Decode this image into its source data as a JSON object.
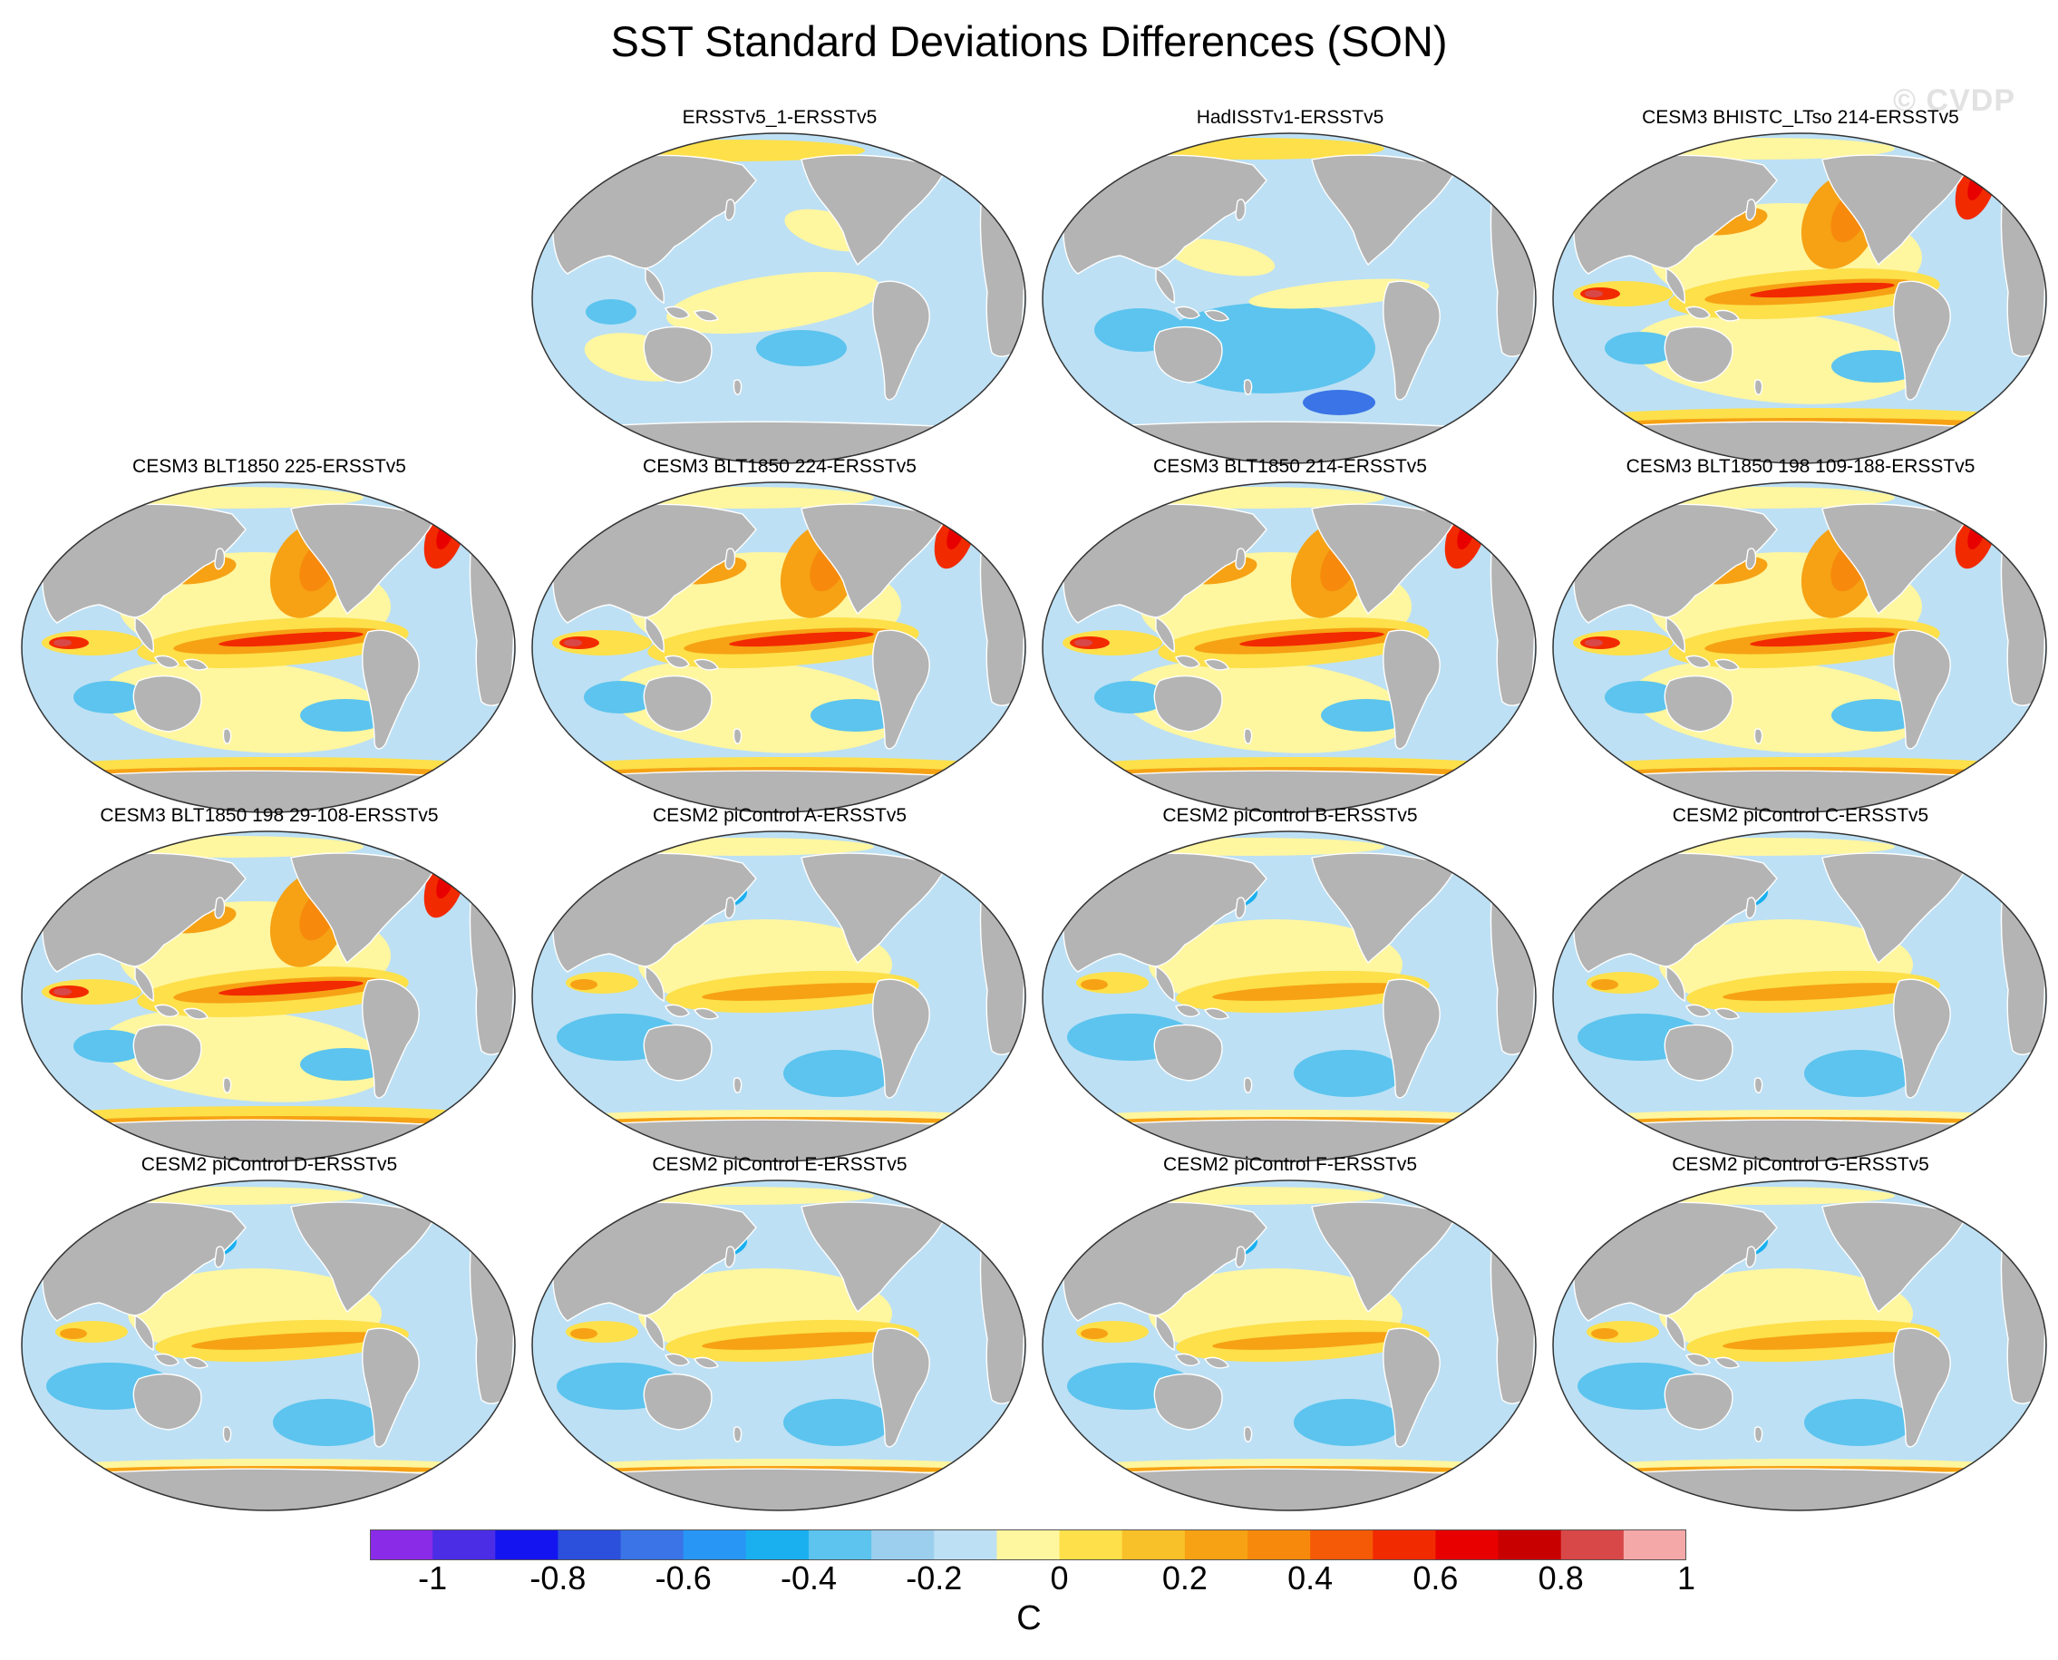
{
  "title": "SST Standard Deviations Differences (SON)",
  "watermark": "© CVDP",
  "panels": [
    {
      "label": "ERSSTv5_1-ERSSTv5",
      "pattern": "weak-mixed"
    },
    {
      "label": "HadISSTv1-ERSSTv5",
      "pattern": "weak-negative"
    },
    {
      "label": "CESM3 BHISTC_LTso 214-ERSSTv5",
      "pattern": "strong-positive"
    },
    {
      "label": "CESM3 BLT1850 225-ERSSTv5",
      "pattern": "strong-positive"
    },
    {
      "label": "CESM3 BLT1850 224-ERSSTv5",
      "pattern": "strong-positive"
    },
    {
      "label": "CESM3 BLT1850 214-ERSSTv5",
      "pattern": "strong-positive"
    },
    {
      "label": "CESM3 BLT1850 198 109-188-ERSSTv5",
      "pattern": "strong-positive"
    },
    {
      "label": "CESM3 BLT1850 198 29-108-ERSSTv5",
      "pattern": "strong-positive"
    },
    {
      "label": "CESM2 piControl A-ERSSTv5",
      "pattern": "moderate-positive"
    },
    {
      "label": "CESM2 piControl B-ERSSTv5",
      "pattern": "moderate-positive"
    },
    {
      "label": "CESM2 piControl C-ERSSTv5",
      "pattern": "moderate-positive"
    },
    {
      "label": "CESM2 piControl D-ERSSTv5",
      "pattern": "moderate-positive"
    },
    {
      "label": "CESM2 piControl E-ERSSTv5",
      "pattern": "moderate-positive"
    },
    {
      "label": "CESM2 piControl F-ERSSTv5",
      "pattern": "moderate-positive"
    },
    {
      "label": "CESM2 piControl G-ERSSTv5",
      "pattern": "moderate-positive"
    }
  ],
  "colorbar": {
    "units": "C",
    "ticks": [
      "-1",
      "-0.8",
      "-0.6",
      "-0.4",
      "-0.2",
      "0",
      "0.2",
      "0.4",
      "0.6",
      "0.8",
      "1"
    ],
    "colors": [
      "#8a2be8",
      "#4b2de6",
      "#1414f0",
      "#2c4fdc",
      "#3a74e6",
      "#2896f5",
      "#1ab0f0",
      "#5cc4ee",
      "#9ccfee",
      "#bde0f4",
      "#fff6a0",
      "#fde04a",
      "#f8c029",
      "#f6a214",
      "#f78a0c",
      "#f55a06",
      "#f22a00",
      "#e80000",
      "#c80000",
      "#d84848",
      "#f5a8a8"
    ]
  },
  "colors": {
    "land": "#b4b4b4",
    "ocean_base": "#bde0f4",
    "coast": "#ffffff",
    "border": "#333333"
  }
}
